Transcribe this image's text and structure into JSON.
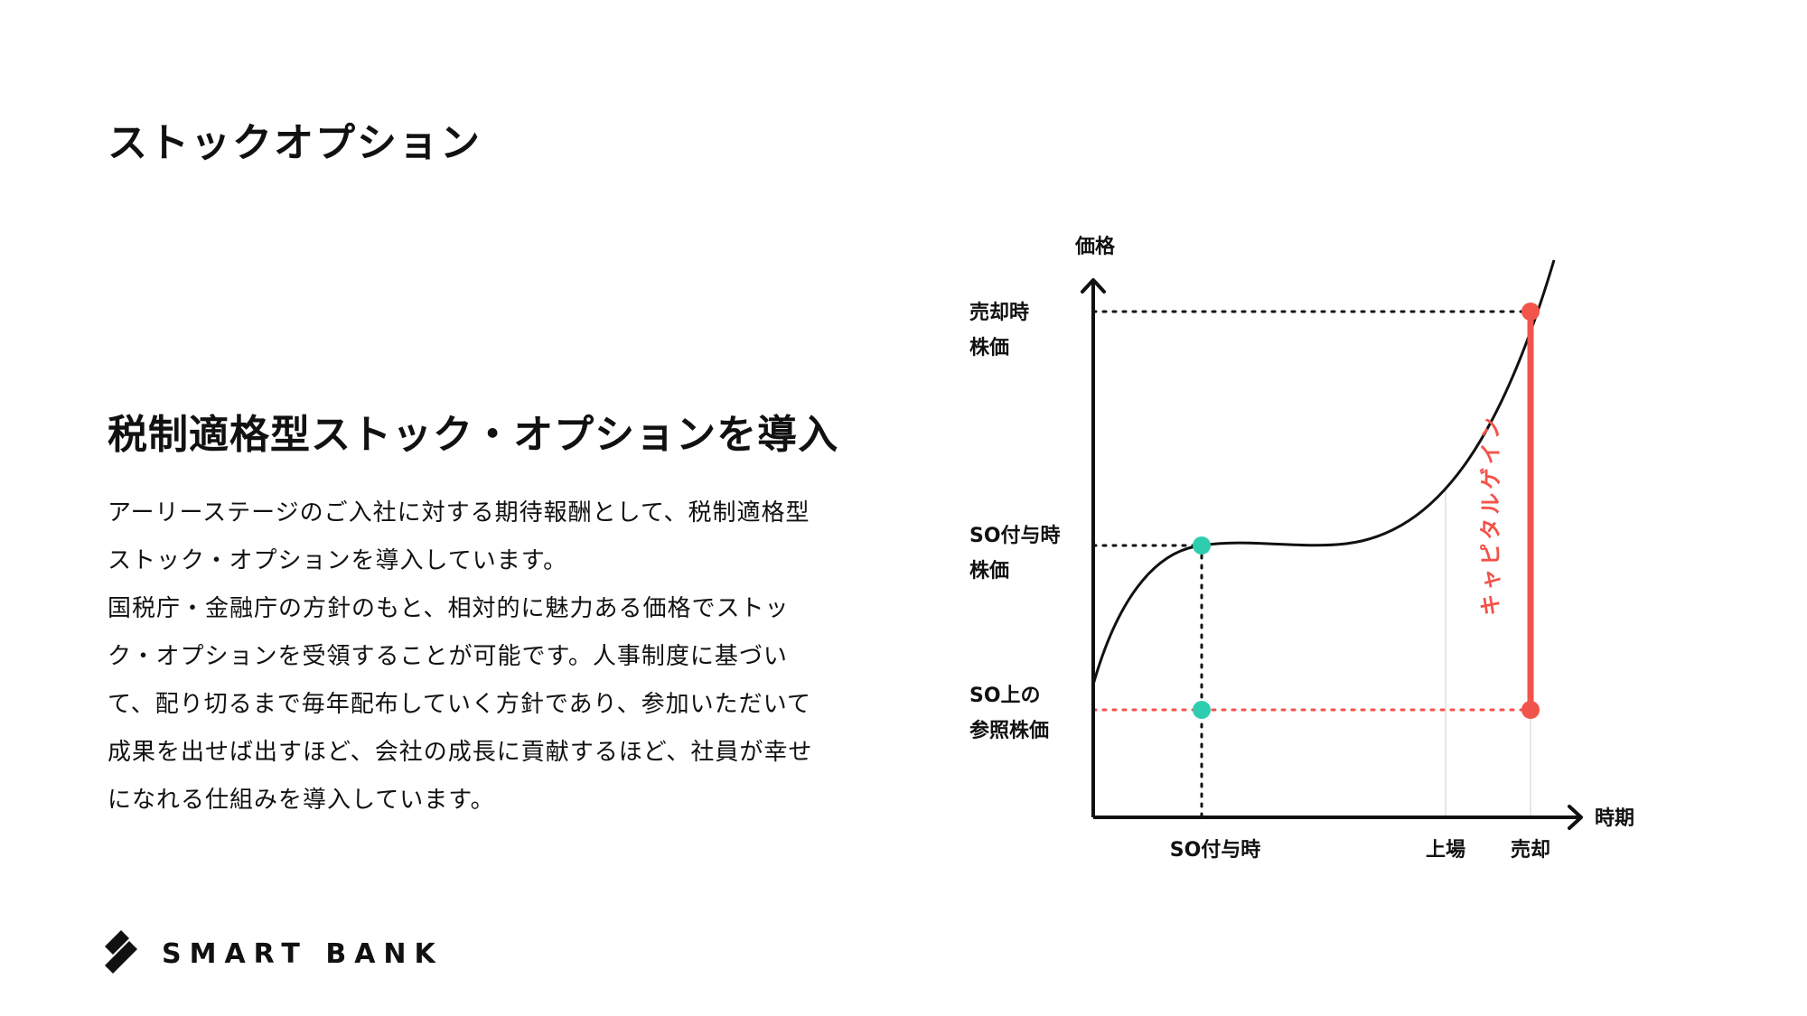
{
  "page": {
    "title": "ストックオプション",
    "heading": "税制適格型ストック・オプションを導入",
    "body_lines": [
      "アーリーステージのご入社に対する期待報酬として、税制適格型",
      "ストック・オプションを導入しています。",
      " 国税庁・金融庁の方針のもと、相対的に魅力ある価格でストッ",
      "ク・オプションを受領することが可能です。人事制度に基づい",
      "て、配り切るまで毎年配布していく方針であり、参加いただいて",
      "成果を出せば出すほど、会社の成長に貢献するほど、社員が幸せ",
      "になれる仕組みを導入しています。"
    ]
  },
  "diagram": {
    "y_axis_label": "価格",
    "x_axis_label": "時期",
    "y_levels": [
      {
        "line1": "売却時",
        "line2": "株価"
      },
      {
        "line1": "SO付与時",
        "line2": "株価"
      },
      {
        "line1": "SO上の",
        "line2": "参照株価"
      }
    ],
    "x_ticks": [
      "SO付与時",
      "上場",
      "売却"
    ],
    "gain_label": "キャピタルゲイン",
    "colors": {
      "curve": "#111111",
      "grant_point": "#2ecdb0",
      "gain": "#f2534a",
      "guide_line": "#e6e6e6"
    }
  },
  "logo": {
    "name": "SMART BANK",
    "icon": "smartbank-stripes-icon"
  }
}
